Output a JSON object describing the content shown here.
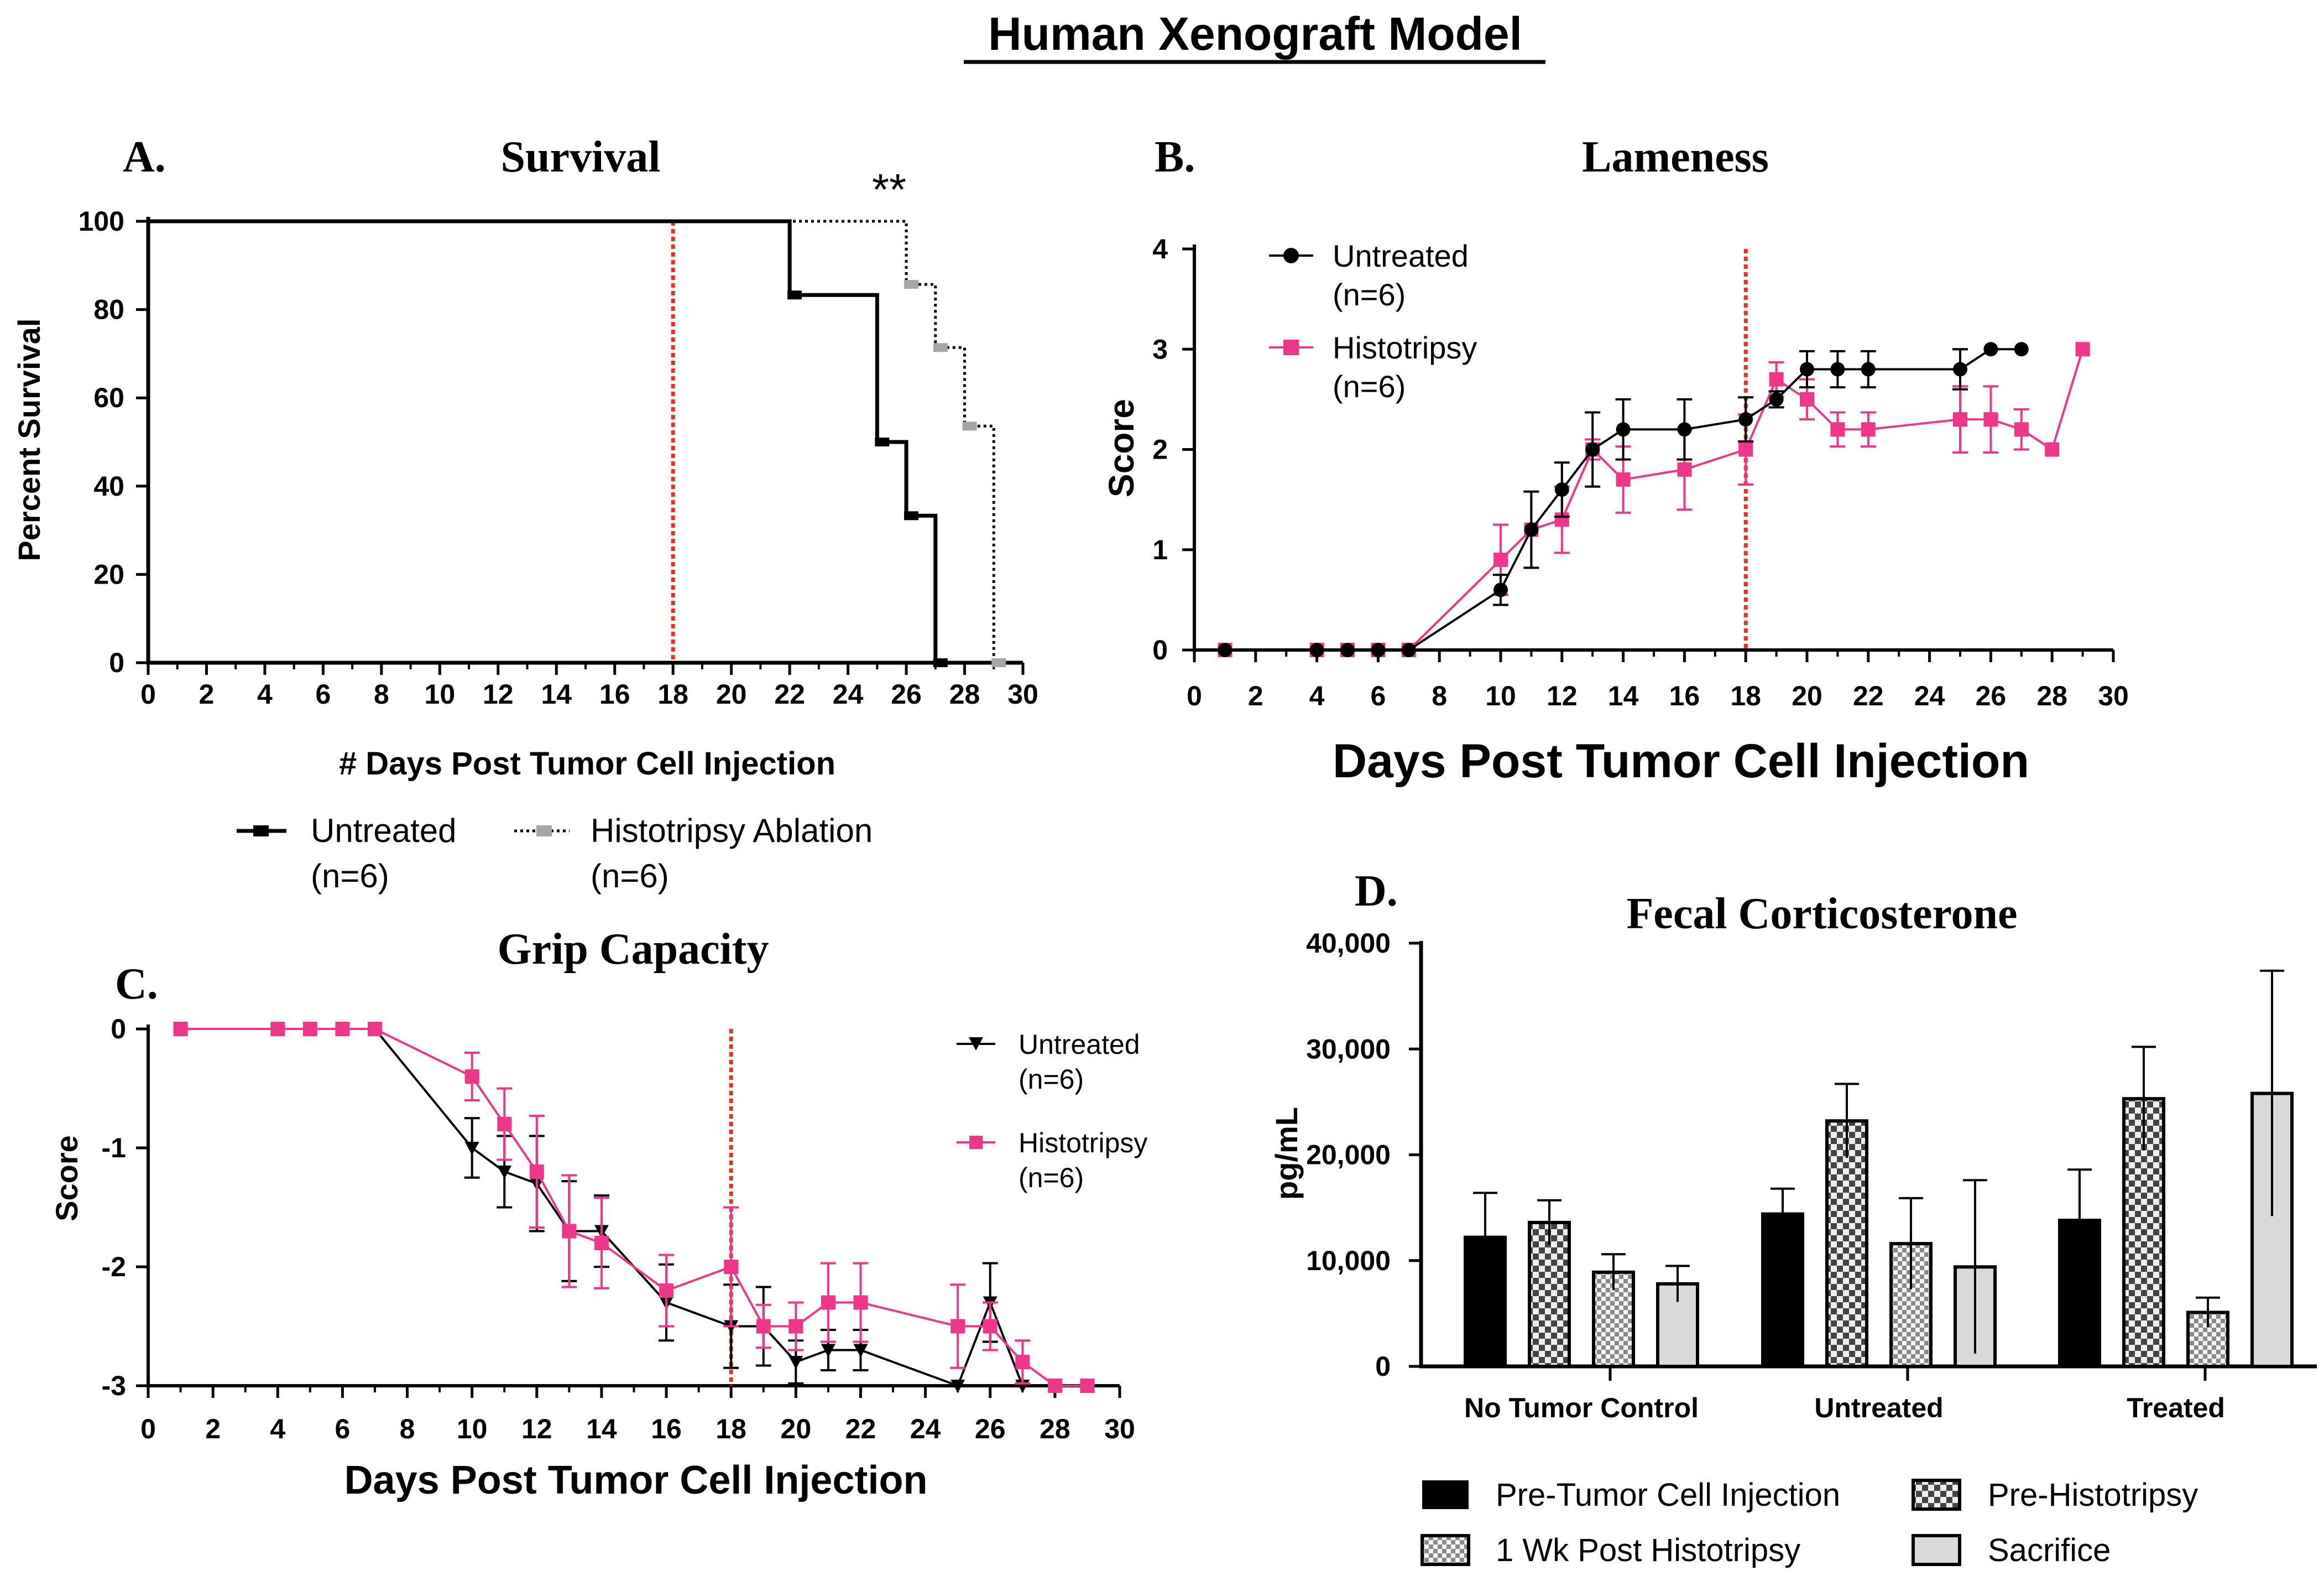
{
  "figure": {
    "title": "Human Xenograft Model",
    "colors": {
      "untreated": "#000000",
      "histotripsy": "#f0368b",
      "histo_grey": "#a6a6a6",
      "vline": "#e8321e",
      "sacrifice": "#d9d9d9",
      "post_fill": "#eeeeee",
      "checker": "#555555"
    }
  },
  "chart_data": [
    {
      "id": "A",
      "panel_label": "A.",
      "type": "line",
      "subtype": "kaplan-meier",
      "title": "Survival",
      "xlabel": "# Days Post Tumor Cell Injection",
      "ylabel": "Percent Survival",
      "xlim": [
        0,
        30
      ],
      "ylim": [
        0,
        100
      ],
      "xticks": [
        "0",
        "2",
        "4",
        "6",
        "8",
        "10",
        "12",
        "14",
        "16",
        "18",
        "20",
        "22",
        "24",
        "26",
        "28",
        "30"
      ],
      "yticks": [
        "0",
        "20",
        "40",
        "60",
        "80",
        "100"
      ],
      "annotation": "**",
      "reference_line_x": 18,
      "series": [
        {
          "name": "Untreated",
          "name2": "(n=6)",
          "style": "solid",
          "x": [
            0,
            22,
            25,
            26,
            27
          ],
          "y": [
            100,
            83.3,
            50,
            33.3,
            0
          ]
        },
        {
          "name": "Histotripsy Ablation",
          "name2": "(n=6)",
          "style": "dotted",
          "x": [
            0,
            26,
            27,
            28,
            29
          ],
          "y": [
            100,
            85.7,
            71.4,
            53.6,
            0
          ]
        }
      ]
    },
    {
      "id": "B",
      "panel_label": "B.",
      "type": "line",
      "title": "Lameness",
      "xlabel": "Days Post Tumor Cell Injection",
      "ylabel": "Score",
      "xlim": [
        0,
        30
      ],
      "ylim": [
        0,
        4
      ],
      "xticks": [
        "0",
        "2",
        "4",
        "6",
        "8",
        "10",
        "12",
        "14",
        "16",
        "18",
        "20",
        "22",
        "24",
        "26",
        "28",
        "30"
      ],
      "yticks": [
        "0",
        "1",
        "2",
        "3",
        "4"
      ],
      "reference_line_x": 18,
      "series": [
        {
          "name": "Untreated",
          "name2": "(n=6)",
          "marker": "circle",
          "x": [
            1,
            4,
            5,
            6,
            7,
            10,
            11,
            12,
            13,
            14,
            16,
            18,
            19,
            20,
            21,
            22,
            25,
            26,
            27
          ],
          "y": [
            0,
            0,
            0,
            0,
            0,
            0.6,
            1.2,
            1.6,
            2.0,
            2.2,
            2.2,
            2.3,
            2.5,
            2.8,
            2.8,
            2.8,
            2.8,
            3.0,
            3.0
          ],
          "err": [
            0,
            0,
            0,
            0,
            0,
            0.15,
            0.38,
            0.27,
            0.37,
            0.3,
            0.3,
            0.22,
            0.08,
            0.18,
            0.18,
            0.18,
            0.2,
            0,
            0
          ]
        },
        {
          "name": "Histotripsy",
          "name2": "(n=6)",
          "marker": "square",
          "x": [
            1,
            4,
            5,
            6,
            7,
            10,
            11,
            12,
            13,
            14,
            16,
            18,
            19,
            20,
            21,
            22,
            25,
            26,
            27,
            28,
            29
          ],
          "y": [
            0,
            0,
            0,
            0,
            0,
            0.9,
            1.2,
            1.3,
            2.0,
            1.7,
            1.8,
            2.0,
            2.7,
            2.5,
            2.2,
            2.2,
            2.3,
            2.3,
            2.2,
            2.0,
            3.0
          ],
          "err": [
            0,
            0,
            0,
            0,
            0,
            0.35,
            0.38,
            0.33,
            0.1,
            0.33,
            0.4,
            0.35,
            0.17,
            0.2,
            0.17,
            0.17,
            0.33,
            0.33,
            0.2,
            0,
            0
          ]
        }
      ]
    },
    {
      "id": "C",
      "panel_label": "C.",
      "type": "line",
      "title": "Grip Capacity",
      "xlabel": "Days Post Tumor Cell Injection",
      "ylabel": "Score",
      "xlim": [
        0,
        30
      ],
      "ylim": [
        -3,
        0
      ],
      "xticks": [
        "0",
        "2",
        "4",
        "6",
        "8",
        "10",
        "12",
        "14",
        "16",
        "18",
        "20",
        "22",
        "24",
        "26",
        "28",
        "30"
      ],
      "yticks": [
        "-3",
        "-2",
        "-1",
        "0"
      ],
      "reference_line_x": 18,
      "series": [
        {
          "name": "Untreated",
          "name2": "(n=6)",
          "marker": "triangle-down",
          "x": [
            1,
            4,
            5,
            6,
            7,
            10,
            11,
            12,
            13,
            14,
            16,
            18,
            19,
            20,
            21,
            22,
            25,
            26,
            27
          ],
          "y": [
            0,
            0,
            0,
            0,
            0,
            -1.0,
            -1.2,
            -1.3,
            -1.7,
            -1.7,
            -2.3,
            -2.5,
            -2.5,
            -2.8,
            -2.7,
            -2.7,
            -3.0,
            -2.3,
            -3.0
          ],
          "err": [
            0,
            0,
            0,
            0,
            0,
            0.25,
            0.3,
            0.4,
            0.42,
            0.3,
            0.32,
            0.35,
            0.33,
            0.18,
            0.17,
            0.17,
            0,
            0.33,
            0
          ]
        },
        {
          "name": "Histotripsy",
          "name2": "(n=6)",
          "marker": "square",
          "x": [
            1,
            4,
            5,
            6,
            7,
            10,
            11,
            12,
            13,
            14,
            16,
            18,
            19,
            20,
            21,
            22,
            25,
            26,
            27,
            28,
            29
          ],
          "y": [
            0,
            0,
            0,
            0,
            0,
            -0.4,
            -0.8,
            -1.2,
            -1.7,
            -1.8,
            -2.2,
            -2.0,
            -2.5,
            -2.5,
            -2.3,
            -2.3,
            -2.5,
            -2.5,
            -2.8,
            -3.0,
            -3.0
          ],
          "err": [
            0,
            0,
            0,
            0,
            0,
            0.2,
            0.3,
            0.47,
            0.47,
            0.38,
            0.3,
            0.5,
            0.18,
            0.2,
            0.33,
            0.33,
            0.35,
            0.2,
            0.18,
            0,
            0
          ]
        }
      ]
    },
    {
      "id": "D",
      "panel_label": "D.",
      "type": "bar",
      "title": "Fecal Corticosterone",
      "xlabel": "",
      "ylabel": "pg/mL",
      "ylim": [
        0,
        40000
      ],
      "yticks": [
        "0",
        "10,000",
        "20,000",
        "30,000",
        "40,000"
      ],
      "categories": [
        "No Tumor Control",
        "Untreated",
        "Treated"
      ],
      "series": [
        {
          "name": "Pre-Tumor Cell Injection",
          "fill": "black",
          "values": [
            12200,
            14400,
            13800
          ],
          "err": [
            4200,
            2400,
            4800
          ]
        },
        {
          "name": "Pre-Histotripsy",
          "fill": "dark-checker",
          "values": [
            13600,
            23200,
            25300
          ],
          "err": [
            2100,
            3500,
            4900
          ]
        },
        {
          "name": "1 Wk Post Histotripsy",
          "fill": "light-checker",
          "values": [
            8900,
            11600,
            5100
          ],
          "err": [
            1700,
            4300,
            1400
          ]
        },
        {
          "name": "Sacrifice",
          "fill": "light-gray",
          "values": [
            7800,
            9400,
            25800
          ],
          "err": [
            1700,
            8200,
            11600
          ]
        }
      ]
    }
  ]
}
